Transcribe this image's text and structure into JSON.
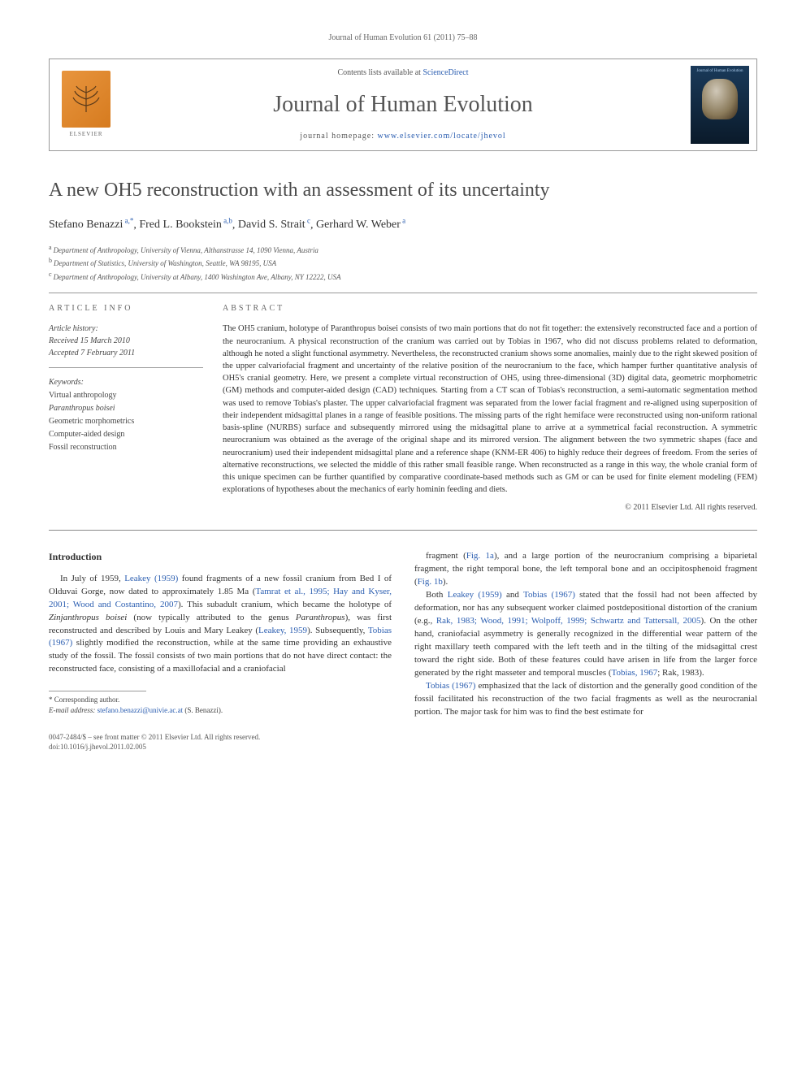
{
  "running_header": "Journal of Human Evolution 61 (2011) 75–88",
  "masthead": {
    "contents_prefix": "Contents lists available at ",
    "contents_link": "ScienceDirect",
    "journal_name": "Journal of Human Evolution",
    "homepage_prefix": "journal homepage: ",
    "homepage_url": "www.elsevier.com/locate/jhevol",
    "publisher": "ELSEVIER",
    "cover_title": "Journal of Human Evolution"
  },
  "article": {
    "title": "A new OH5 reconstruction with an assessment of its uncertainty",
    "authors_html": "Stefano Benazzi",
    "authors": [
      {
        "name": "Stefano Benazzi",
        "aff": "a,*"
      },
      {
        "name": "Fred L. Bookstein",
        "aff": "a,b"
      },
      {
        "name": "David S. Strait",
        "aff": "c"
      },
      {
        "name": "Gerhard W. Weber",
        "aff": "a"
      }
    ],
    "affiliations": [
      {
        "sup": "a",
        "text": "Department of Anthropology, University of Vienna, Althanstrasse 14, 1090 Vienna, Austria"
      },
      {
        "sup": "b",
        "text": "Department of Statistics, University of Washington, Seattle, WA 98195, USA"
      },
      {
        "sup": "c",
        "text": "Department of Anthropology, University at Albany, 1400 Washington Ave, Albany, NY 12222, USA"
      }
    ]
  },
  "info": {
    "label": "ARTICLE INFO",
    "history_label": "Article history:",
    "received": "Received 15 March 2010",
    "accepted": "Accepted 7 February 2011",
    "keywords_label": "Keywords:",
    "keywords": [
      "Virtual anthropology",
      "Paranthropus boisei",
      "Geometric morphometrics",
      "Computer-aided design",
      "Fossil reconstruction"
    ]
  },
  "abstract": {
    "label": "ABSTRACT",
    "text": "The OH5 cranium, holotype of Paranthropus boisei consists of two main portions that do not fit together: the extensively reconstructed face and a portion of the neurocranium. A physical reconstruction of the cranium was carried out by Tobias in 1967, who did not discuss problems related to deformation, although he noted a slight functional asymmetry. Nevertheless, the reconstructed cranium shows some anomalies, mainly due to the right skewed position of the upper calvariofacial fragment and uncertainty of the relative position of the neurocranium to the face, which hamper further quantitative analysis of OH5's cranial geometry. Here, we present a complete virtual reconstruction of OH5, using three-dimensional (3D) digital data, geometric morphometric (GM) methods and computer-aided design (CAD) techniques. Starting from a CT scan of Tobias's reconstruction, a semi-automatic segmentation method was used to remove Tobias's plaster. The upper calvariofacial fragment was separated from the lower facial fragment and re-aligned using superposition of their independent midsagittal planes in a range of feasible positions. The missing parts of the right hemiface were reconstructed using non-uniform rational basis-spline (NURBS) surface and subsequently mirrored using the midsagittal plane to arrive at a symmetrical facial reconstruction. A symmetric neurocranium was obtained as the average of the original shape and its mirrored version. The alignment between the two symmetric shapes (face and neurocranium) used their independent midsagittal plane and a reference shape (KNM-ER 406) to highly reduce their degrees of freedom. From the series of alternative reconstructions, we selected the middle of this rather small feasible range. When reconstructed as a range in this way, the whole cranial form of this unique specimen can be further quantified by comparative coordinate-based methods such as GM or can be used for finite element modeling (FEM) explorations of hypotheses about the mechanics of early hominin feeding and diets.",
    "copyright": "© 2011 Elsevier Ltd. All rights reserved."
  },
  "body": {
    "intro_heading": "Introduction",
    "col1_p1": "In July of 1959, Leakey (1959) found fragments of a new fossil cranium from Bed I of Olduvai Gorge, now dated to approximately 1.85 Ma (Tamrat et al., 1995; Hay and Kyser, 2001; Wood and Costantino, 2007). This subadult cranium, which became the holotype of Zinjanthropus boisei (now typically attributed to the genus Paranthropus), was first reconstructed and described by Louis and Mary Leakey (Leakey, 1959). Subsequently, Tobias (1967) slightly modified the reconstruction, while at the same time providing an exhaustive study of the fossil. The fossil consists of two main portions that do not have direct contact: the reconstructed face, consisting of a maxillofacial and a craniofacial",
    "col2_p1": "fragment (Fig. 1a), and a large portion of the neurocranium comprising a biparietal fragment, the right temporal bone, the left temporal bone and an occipitosphenoid fragment (Fig. 1b).",
    "col2_p2": "Both Leakey (1959) and Tobias (1967) stated that the fossil had not been affected by deformation, nor has any subsequent worker claimed postdepositional distortion of the cranium (e.g., Rak, 1983; Wood, 1991; Wolpoff, 1999; Schwartz and Tattersall, 2005). On the other hand, craniofacial asymmetry is generally recognized in the differential wear pattern of the right maxillary teeth compared with the left teeth and in the tilting of the midsagittal crest toward the right side. Both of these features could have arisen in life from the larger force generated by the right masseter and temporal muscles (Tobias, 1967; Rak, 1983).",
    "col2_p3": "Tobias (1967) emphasized that the lack of distortion and the generally good condition of the fossil facilitated his reconstruction of the two facial fragments as well as the neurocranial portion. The major task for him was to find the best estimate for"
  },
  "footnotes": {
    "corresp": "* Corresponding author.",
    "email_label": "E-mail address: ",
    "email": "stefano.benazzi@univie.ac.at",
    "email_suffix": " (S. Benazzi)."
  },
  "bottom": {
    "left_line1": "0047-2484/$ – see front matter © 2011 Elsevier Ltd. All rights reserved.",
    "left_line2": "doi:10.1016/j.jhevol.2011.02.005"
  },
  "colors": {
    "link": "#2a5db0",
    "text": "#333333",
    "muted": "#666666",
    "rule": "#999999"
  }
}
